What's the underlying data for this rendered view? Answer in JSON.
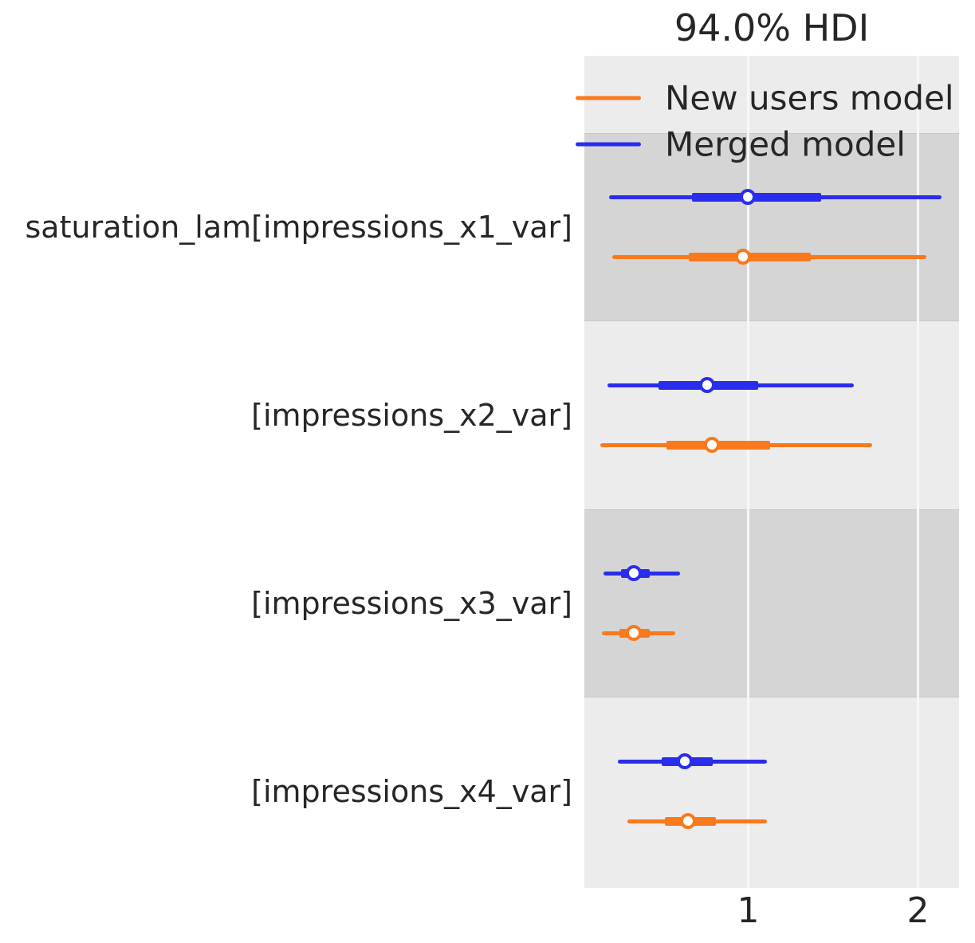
{
  "figure": {
    "background": "#ffffff",
    "text_color": "#262626",
    "plot_bg_light": "#ececec",
    "plot_bg_dark": "#d5d5d5",
    "gridline_color": "#f7f7f7"
  },
  "chart_data": {
    "type": "forest",
    "title": "94.0% HDI",
    "hdi_probability": "94.0%",
    "xlabel": "",
    "ylabel": "",
    "xlim": [
      0.035,
      2.242
    ],
    "xticks": [
      "1",
      "2"
    ],
    "xtick_values": [
      1,
      2
    ],
    "grid": "vertical white gridlines on gray bands",
    "legend": {
      "position": "upper left inside plot",
      "entries": [
        {
          "label": "New users model",
          "color": "#f9791d"
        },
        {
          "label": "Merged model",
          "color": "#2a2eec"
        }
      ]
    },
    "rows": [
      {
        "label": "saturation_lam[impressions_x1_var]",
        "band": "dark",
        "intervals": [
          {
            "model": "Merged model",
            "color": "#2a2eec",
            "hdi": [
              0.18,
              2.14
            ],
            "quartile": [
              0.67,
              1.43
            ],
            "median": 1.0
          },
          {
            "model": "New users model",
            "color": "#f9791d",
            "hdi": [
              0.2,
              2.05
            ],
            "quartile": [
              0.65,
              1.37
            ],
            "median": 0.97
          }
        ]
      },
      {
        "label": "[impressions_x2_var]",
        "band": "light",
        "intervals": [
          {
            "model": "Merged model",
            "color": "#2a2eec",
            "hdi": [
              0.17,
              1.62
            ],
            "quartile": [
              0.47,
              1.06
            ],
            "median": 0.76
          },
          {
            "model": "New users model",
            "color": "#f9791d",
            "hdi": [
              0.13,
              1.73
            ],
            "quartile": [
              0.52,
              1.13
            ],
            "median": 0.79
          }
        ]
      },
      {
        "label": "[impressions_x3_var]",
        "band": "dark",
        "intervals": [
          {
            "model": "Merged model",
            "color": "#2a2eec",
            "hdi": [
              0.15,
              0.6
            ],
            "quartile": [
              0.25,
              0.42
            ],
            "median": 0.33
          },
          {
            "model": "New users model",
            "color": "#f9791d",
            "hdi": [
              0.14,
              0.57
            ],
            "quartile": [
              0.24,
              0.42
            ],
            "median": 0.33
          }
        ]
      },
      {
        "label": "[impressions_x4_var]",
        "band": "light",
        "intervals": [
          {
            "model": "Merged model",
            "color": "#2a2eec",
            "hdi": [
              0.23,
              1.11
            ],
            "quartile": [
              0.49,
              0.79
            ],
            "median": 0.63
          },
          {
            "model": "New users model",
            "color": "#f9791d",
            "hdi": [
              0.29,
              1.11
            ],
            "quartile": [
              0.51,
              0.81
            ],
            "median": 0.65
          }
        ]
      }
    ]
  }
}
